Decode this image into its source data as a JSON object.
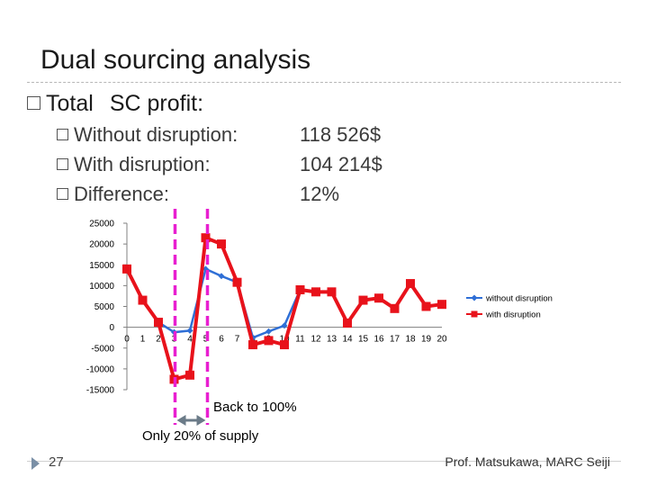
{
  "slide": {
    "title": "Dual sourcing analysis",
    "bullet1_word1": "Total",
    "bullet1_word2": "SC profit:",
    "items": [
      {
        "label": "Without disruption:",
        "value": "118 526$"
      },
      {
        "label": "With disruption:",
        "value": "104 214$"
      },
      {
        "label": "Difference:",
        "value": "12%"
      }
    ],
    "annotation_back": "Back to 100%",
    "annotation_supply": "Only 20% of supply",
    "page_number": "27",
    "author": "Prof. Matsukawa, MARC Seiji"
  },
  "colors": {
    "series_without": "#2f6fd6",
    "series_with": "#e8121b",
    "marker_lines": "#e81fd0",
    "arrow": "#6b7b88"
  },
  "chart_data": {
    "type": "line",
    "x": [
      0,
      1,
      2,
      3,
      4,
      5,
      6,
      7,
      8,
      9,
      10,
      11,
      12,
      13,
      14,
      15,
      16,
      17,
      18,
      19,
      20
    ],
    "series": [
      {
        "name": "without disruption",
        "values": [
          14000,
          6500,
          1200,
          -1200,
          -800,
          14000,
          12300,
          10800,
          -2500,
          -1000,
          400,
          9000,
          8500,
          8500,
          1000,
          6500,
          7000,
          4500,
          10500,
          5000,
          5500
        ]
      },
      {
        "name": "with disruption",
        "values": [
          14000,
          6500,
          1200,
          -12500,
          -11500,
          21500,
          20000,
          10800,
          -4200,
          -3200,
          -4200,
          9000,
          8500,
          8500,
          1000,
          6500,
          7000,
          4500,
          10500,
          5000,
          5500
        ]
      }
    ],
    "ylim": [
      -15000,
      25000
    ],
    "yticks": [
      25000,
      20000,
      15000,
      10000,
      5000,
      0,
      -5000,
      -10000,
      -15000
    ],
    "legend": "right",
    "marker_lines_at_x": [
      3,
      5
    ],
    "arrow_between_x": [
      3,
      5
    ]
  }
}
